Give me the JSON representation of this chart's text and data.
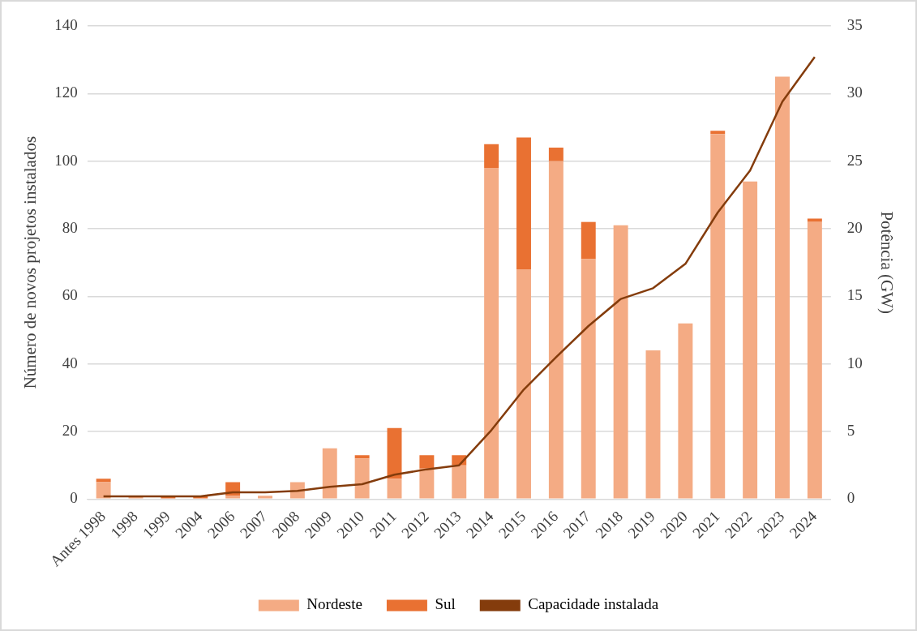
{
  "chart_data": {
    "type": "bar",
    "stacked": true,
    "ylabel": "Número de novos projetos instalados",
    "y2label": "Potência (GW)",
    "categories": [
      "Antes 1998",
      "1998",
      "1999",
      "2004",
      "2006",
      "2007",
      "2008",
      "2009",
      "2010",
      "2011",
      "2012",
      "2013",
      "2014",
      "2015",
      "2016",
      "2017",
      "2018",
      "2019",
      "2020",
      "2021",
      "2022",
      "2023",
      "2024"
    ],
    "series": [
      {
        "name": "Nordeste",
        "color": "#f4ab84",
        "values": [
          5,
          1,
          0,
          0,
          1,
          1,
          5,
          15,
          12,
          6,
          9,
          10,
          98,
          68,
          100,
          71,
          81,
          44,
          52,
          108,
          94,
          125,
          82
        ]
      },
      {
        "name": "Sul",
        "color": "#e97132",
        "values": [
          1,
          0,
          1,
          1,
          4,
          0,
          0,
          0,
          1,
          15,
          4,
          3,
          7,
          39,
          4,
          11,
          0,
          0,
          0,
          1,
          0,
          0,
          1
        ]
      },
      {
        "name": "Capacidade instalada",
        "type": "line",
        "axis": "y2",
        "color": "#843c0c",
        "values": [
          0.2,
          0.2,
          0.2,
          0.2,
          0.5,
          0.5,
          0.6,
          0.9,
          1.1,
          1.8,
          2.2,
          2.5,
          5.1,
          8.1,
          10.5,
          12.8,
          14.8,
          15.6,
          17.4,
          21.2,
          24.3,
          29.4,
          32.7
        ]
      }
    ],
    "ylim": [
      0,
      140
    ],
    "yticks": [
      0,
      20,
      40,
      60,
      80,
      100,
      120,
      140
    ],
    "y2lim": [
      0,
      35
    ],
    "y2ticks": [
      0,
      5,
      10,
      15,
      20,
      25,
      30,
      35
    ],
    "grid": "y",
    "legend": "bottom",
    "marker": "none"
  }
}
